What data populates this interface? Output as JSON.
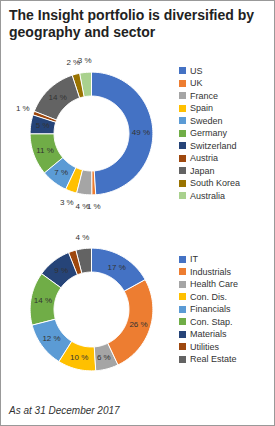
{
  "title": "The Insight portfolio is diversified by geography and sector",
  "caption": "As at 31 December 2017",
  "chart_data": [
    {
      "type": "donut",
      "categories": [
        "US",
        "UK",
        "France",
        "Spain",
        "Sweden",
        "Germany",
        "Switzerland",
        "Austria",
        "Japan",
        "South Korea",
        "Australia"
      ],
      "values": [
        49,
        1,
        4,
        3,
        7,
        11,
        5,
        1,
        14,
        2,
        3
      ],
      "value_labels": [
        "49 %",
        "1 %",
        "4 %",
        "3 %",
        "7 %",
        "11 %",
        "5 %",
        "1 %",
        "14 %",
        "2 %",
        "3 %"
      ],
      "colors": [
        "#4472C4",
        "#ED7D31",
        "#A5A5A5",
        "#FFC000",
        "#5B9BD5",
        "#70AD47",
        "#264478",
        "#9E480E",
        "#636363",
        "#997300",
        "#A9D18E"
      ],
      "data_labels": true,
      "legend": "right"
    },
    {
      "type": "donut",
      "categories": [
        "IT",
        "Industrials",
        "Health Care",
        "Con. Dis.",
        "Financials",
        "Con. Stap.",
        "Materials",
        "Utilities",
        "Real Estate"
      ],
      "values": [
        17,
        26,
        6,
        10,
        12,
        14,
        9,
        2,
        4
      ],
      "value_labels": [
        "17 %",
        "26 %",
        "6 %",
        "10 %",
        "12 %",
        "14 %",
        "9 %",
        null,
        "4 %"
      ],
      "colors": [
        "#4472C4",
        "#ED7D31",
        "#A5A5A5",
        "#FFC000",
        "#5B9BD5",
        "#70AD47",
        "#264478",
        "#9E480E",
        "#636363"
      ],
      "data_labels": true,
      "legend": "right"
    }
  ]
}
